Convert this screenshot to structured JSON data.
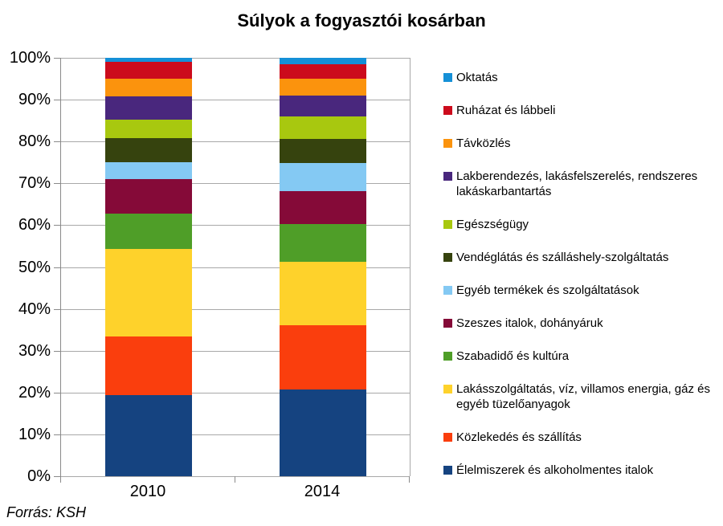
{
  "title": "Súlyok a fogyasztói kosárban",
  "source_note": "Forrás: KSH",
  "chart_data": {
    "type": "bar",
    "stacked": true,
    "percent_stacked": true,
    "title": "Súlyok a fogyasztói kosárban",
    "categories": [
      "2010",
      "2014"
    ],
    "xlabel": "",
    "ylabel": "",
    "ylim": [
      0,
      100
    ],
    "y_tick_labels": [
      "0%",
      "10%",
      "20%",
      "30%",
      "40%",
      "50%",
      "60%",
      "70%",
      "80%",
      "90%",
      "100%"
    ],
    "grid": true,
    "legend_position": "right",
    "series_bottom_to_top": [
      {
        "name": "Élelmiszerek és alkoholmentes italok",
        "color": "#154380",
        "values": [
          19.4,
          20.7
        ]
      },
      {
        "name": "Közlekedés és szállítás",
        "color": "#FA3E0D",
        "values": [
          14.0,
          15.4
        ]
      },
      {
        "name": "Lakásszolgáltatás, víz, villamos energia, gáz és egyéb tüzelőanyagok",
        "color": "#FED22B",
        "values": [
          21.0,
          15.1
        ]
      },
      {
        "name": "Szabadidő és kultúra",
        "color": "#4F9E28",
        "values": [
          8.4,
          9.0
        ]
      },
      {
        "name": "Szeszes italok, dohányáruk",
        "color": "#850A38",
        "values": [
          8.2,
          8.0
        ]
      },
      {
        "name": "Egyéb termékek és szolgáltatások",
        "color": "#84C9F3",
        "values": [
          4.1,
          6.7
        ]
      },
      {
        "name": "Vendéglátás és szálláshely-szolgáltatás",
        "color": "#36430E",
        "values": [
          5.7,
          5.8
        ]
      },
      {
        "name": "Egészségügy",
        "color": "#A8C80F",
        "values": [
          4.4,
          5.2
        ]
      },
      {
        "name": "Lakberendezés, lakásfelszerelés, rendszeres lakáskarbantartás",
        "color": "#49277D",
        "values": [
          5.6,
          5.0
        ]
      },
      {
        "name": "Távközlés",
        "color": "#FB930D",
        "values": [
          4.3,
          4.2
        ]
      },
      {
        "name": "Ruházat és lábbeli",
        "color": "#CC0B1C",
        "values": [
          4.0,
          3.4
        ]
      },
      {
        "name": "Oktatás",
        "color": "#1590D7",
        "values": [
          0.9,
          1.5
        ]
      }
    ]
  }
}
